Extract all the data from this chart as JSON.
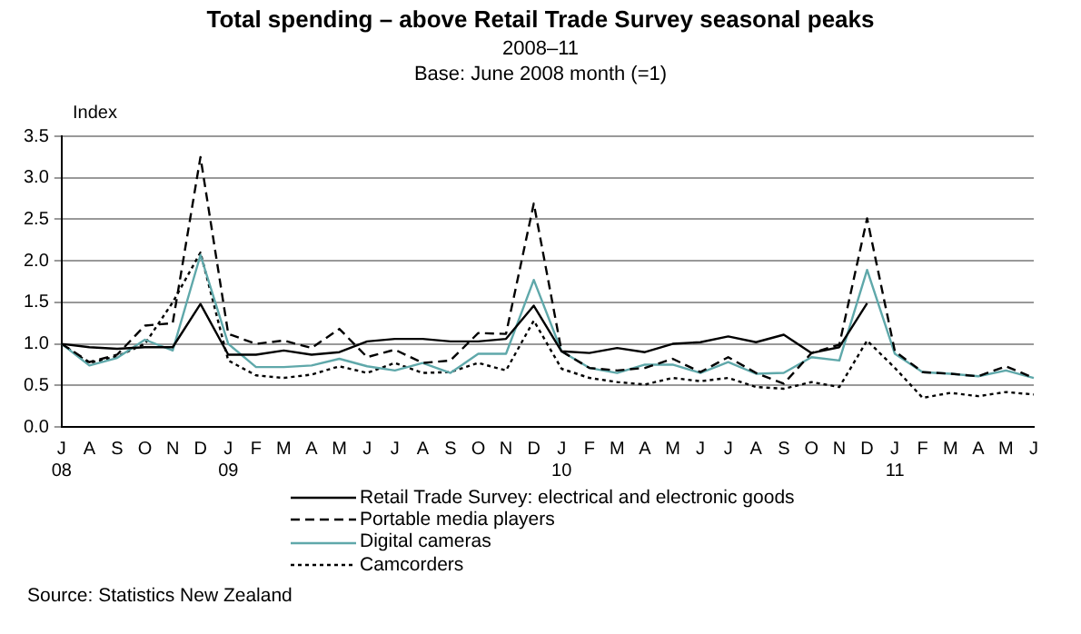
{
  "chart_data": {
    "type": "line",
    "title": "Total spending – above Retail Trade Survey seasonal peaks",
    "subtitle": "2008–11\nBase: June 2008 month (=1)",
    "ylabel": "Index",
    "categories": [
      "J\n08",
      "A",
      "S",
      "O",
      "N",
      "D",
      "J\n09",
      "F",
      "M",
      "A",
      "M",
      "J",
      "J",
      "A",
      "S",
      "O",
      "N",
      "D",
      "J\n10",
      "F",
      "M",
      "A",
      "M",
      "J",
      "J",
      "A",
      "S",
      "O",
      "N",
      "D",
      "J\n11",
      "F",
      "M",
      "A",
      "M",
      "J"
    ],
    "series": [
      {
        "name": "Retail Trade Survey: electrical and electronic goods",
        "color": "#000000",
        "line_style": "solid",
        "values": [
          1.0,
          0.96,
          0.94,
          0.96,
          0.96,
          1.48,
          0.87,
          0.87,
          0.92,
          0.87,
          0.9,
          1.03,
          1.06,
          1.06,
          1.03,
          1.03,
          1.06,
          1.46,
          0.91,
          0.89,
          0.95,
          0.9,
          1.0,
          1.02,
          1.09,
          1.02,
          1.11,
          0.89,
          0.96,
          1.49,
          null,
          null,
          null,
          null,
          null,
          null
        ]
      },
      {
        "name": "Portable media players",
        "color": "#000000",
        "line_style": "dashed",
        "values": [
          1.0,
          0.78,
          0.87,
          1.22,
          1.25,
          3.25,
          1.12,
          1.0,
          1.04,
          0.95,
          1.18,
          0.84,
          0.93,
          0.77,
          0.8,
          1.13,
          1.12,
          2.69,
          0.91,
          0.71,
          0.68,
          0.71,
          0.82,
          0.66,
          0.84,
          0.65,
          0.52,
          0.89,
          0.99,
          2.51,
          0.91,
          0.66,
          0.64,
          0.61,
          0.73,
          0.59
        ]
      },
      {
        "name": "Digital cameras",
        "color": "#5fa8aa",
        "line_style": "solid",
        "values": [
          1.0,
          0.74,
          0.83,
          1.05,
          0.92,
          2.07,
          1.0,
          0.72,
          0.72,
          0.74,
          0.82,
          0.73,
          0.68,
          0.77,
          0.65,
          0.88,
          0.88,
          1.77,
          0.91,
          0.71,
          0.65,
          0.75,
          0.75,
          0.65,
          0.78,
          0.64,
          0.65,
          0.84,
          0.8,
          1.89,
          0.88,
          0.66,
          0.64,
          0.61,
          0.68,
          0.59
        ]
      },
      {
        "name": "Camcorders",
        "color": "#000000",
        "line_style": "dotted",
        "values": [
          1.0,
          0.77,
          0.85,
          1.0,
          1.5,
          2.1,
          0.8,
          0.62,
          0.59,
          0.63,
          0.73,
          0.65,
          0.77,
          0.65,
          0.66,
          0.77,
          0.68,
          1.28,
          0.7,
          0.59,
          0.54,
          0.51,
          0.59,
          0.55,
          0.59,
          0.48,
          0.46,
          0.54,
          0.48,
          1.04,
          0.71,
          0.35,
          0.41,
          0.37,
          0.42,
          0.39
        ]
      }
    ],
    "ylim": [
      0,
      3.5
    ],
    "yticks": [
      {
        "value": 0,
        "label": "0.0"
      },
      {
        "value": 0.5,
        "label": "0.5"
      },
      {
        "value": 1,
        "label": "1.0"
      },
      {
        "value": 1.5,
        "label": "1.5"
      },
      {
        "value": 2,
        "label": "2.0"
      },
      {
        "value": 2.5,
        "label": "2.5"
      },
      {
        "value": 3,
        "label": "3.0"
      },
      {
        "value": 3.5,
        "label": "3.5"
      }
    ],
    "grid": "y",
    "legend": "bottom",
    "marker": "none",
    "annotations": [
      "Source: Statistics New Zealand"
    ]
  }
}
